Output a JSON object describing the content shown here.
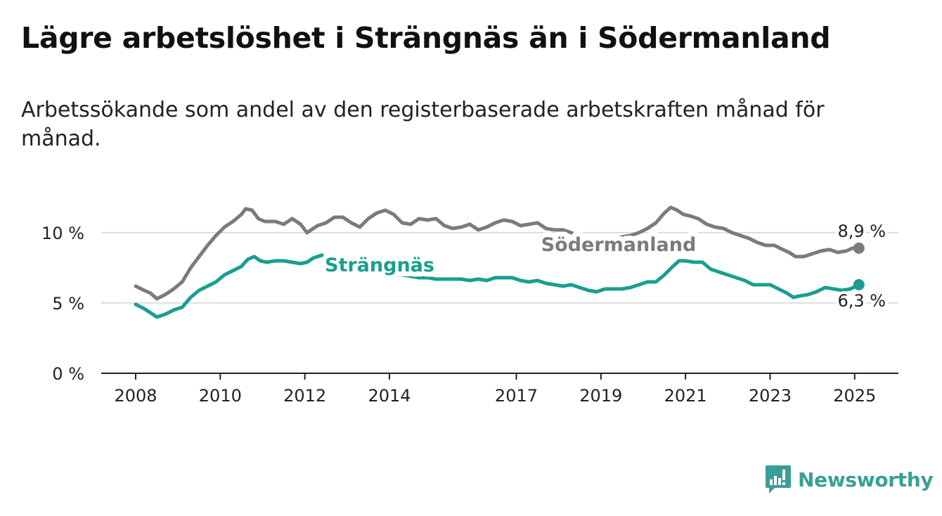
{
  "title": "Lägre arbetslöshet i Strängnäs än i Södermanland",
  "subtitle": "Arbetssökande som andel av den registerbaserade arbetskraften månad för månad.",
  "brand": {
    "name": "Newsworthy",
    "icon": "newsworthy-logo-icon",
    "color": "#3a9e98"
  },
  "chart_data": {
    "type": "line",
    "title": "Lägre arbetslöshet i Strängnäs än i Södermanland",
    "subtitle": "Arbetssökande som andel av den registerbaserade arbetskraften månad för månad.",
    "xlabel": "",
    "ylabel": "",
    "xlim": [
      2008,
      2025.3
    ],
    "ylim": [
      0,
      12
    ],
    "x_ticks": [
      2008,
      2010,
      2012,
      2014,
      2017,
      2019,
      2021,
      2023,
      2025
    ],
    "x_tick_labels": [
      "2008",
      "2010",
      "2012",
      "2014",
      "2017",
      "2019",
      "2021",
      "2023",
      "2025"
    ],
    "y_ticks": [
      0,
      5,
      10
    ],
    "y_tick_labels": [
      "0 %",
      "5 %",
      "10 %"
    ],
    "grid": "horizontal",
    "legend": "direct labels on lines",
    "series": [
      {
        "name": "Södermanland",
        "color": "#7a7a80",
        "end_label": "8,9 %",
        "points": [
          [
            2008.0,
            6.2
          ],
          [
            2008.2,
            5.9
          ],
          [
            2008.35,
            5.7
          ],
          [
            2008.5,
            5.3
          ],
          [
            2008.7,
            5.6
          ],
          [
            2008.9,
            6.0
          ],
          [
            2009.1,
            6.5
          ],
          [
            2009.3,
            7.5
          ],
          [
            2009.5,
            8.3
          ],
          [
            2009.7,
            9.1
          ],
          [
            2009.9,
            9.8
          ],
          [
            2010.1,
            10.4
          ],
          [
            2010.3,
            10.8
          ],
          [
            2010.5,
            11.3
          ],
          [
            2010.6,
            11.7
          ],
          [
            2010.75,
            11.6
          ],
          [
            2010.9,
            11.0
          ],
          [
            2011.05,
            10.8
          ],
          [
            2011.3,
            10.8
          ],
          [
            2011.5,
            10.6
          ],
          [
            2011.7,
            11.0
          ],
          [
            2011.9,
            10.6
          ],
          [
            2012.05,
            10.0
          ],
          [
            2012.3,
            10.5
          ],
          [
            2012.5,
            10.7
          ],
          [
            2012.7,
            11.1
          ],
          [
            2012.9,
            11.1
          ],
          [
            2013.1,
            10.7
          ],
          [
            2013.3,
            10.4
          ],
          [
            2013.5,
            11.0
          ],
          [
            2013.7,
            11.4
          ],
          [
            2013.9,
            11.6
          ],
          [
            2014.1,
            11.3
          ],
          [
            2014.3,
            10.7
          ],
          [
            2014.5,
            10.6
          ],
          [
            2014.7,
            11.0
          ],
          [
            2014.9,
            10.9
          ],
          [
            2015.1,
            11.0
          ],
          [
            2015.3,
            10.5
          ],
          [
            2015.5,
            10.3
          ],
          [
            2015.7,
            10.4
          ],
          [
            2015.9,
            10.6
          ],
          [
            2016.1,
            10.2
          ],
          [
            2016.3,
            10.4
          ],
          [
            2016.5,
            10.7
          ],
          [
            2016.7,
            10.9
          ],
          [
            2016.9,
            10.8
          ],
          [
            2017.1,
            10.5
          ],
          [
            2017.3,
            10.6
          ],
          [
            2017.5,
            10.7
          ],
          [
            2017.7,
            10.3
          ],
          [
            2017.9,
            10.2
          ],
          [
            2018.1,
            10.2
          ],
          [
            2018.3,
            10.0
          ],
          [
            2018.5,
            9.7
          ],
          [
            2018.7,
            9.6
          ],
          [
            2018.9,
            9.6
          ],
          [
            2019.1,
            9.5
          ],
          [
            2019.3,
            9.6
          ],
          [
            2019.5,
            9.7
          ],
          [
            2019.7,
            9.8
          ],
          [
            2019.9,
            10.0
          ],
          [
            2020.1,
            10.3
          ],
          [
            2020.3,
            10.7
          ],
          [
            2020.5,
            11.4
          ],
          [
            2020.65,
            11.8
          ],
          [
            2020.8,
            11.6
          ],
          [
            2020.95,
            11.3
          ],
          [
            2021.1,
            11.2
          ],
          [
            2021.3,
            11.0
          ],
          [
            2021.5,
            10.6
          ],
          [
            2021.7,
            10.4
          ],
          [
            2021.9,
            10.3
          ],
          [
            2022.1,
            10.0
          ],
          [
            2022.3,
            9.8
          ],
          [
            2022.5,
            9.6
          ],
          [
            2022.7,
            9.3
          ],
          [
            2022.9,
            9.1
          ],
          [
            2023.1,
            9.1
          ],
          [
            2023.3,
            8.8
          ],
          [
            2023.45,
            8.6
          ],
          [
            2023.6,
            8.3
          ],
          [
            2023.8,
            8.3
          ],
          [
            2024.0,
            8.5
          ],
          [
            2024.2,
            8.7
          ],
          [
            2024.4,
            8.8
          ],
          [
            2024.6,
            8.6
          ],
          [
            2024.8,
            8.7
          ],
          [
            2024.95,
            8.9
          ],
          [
            2025.1,
            8.9
          ]
        ]
      },
      {
        "name": "Strängnäs",
        "color": "#1a9e8f",
        "end_label": "6,3 %",
        "points": [
          [
            2008.0,
            4.9
          ],
          [
            2008.2,
            4.6
          ],
          [
            2008.35,
            4.3
          ],
          [
            2008.5,
            4.0
          ],
          [
            2008.7,
            4.2
          ],
          [
            2008.9,
            4.5
          ],
          [
            2009.1,
            4.7
          ],
          [
            2009.3,
            5.4
          ],
          [
            2009.5,
            5.9
          ],
          [
            2009.7,
            6.2
          ],
          [
            2009.9,
            6.5
          ],
          [
            2010.1,
            7.0
          ],
          [
            2010.3,
            7.3
          ],
          [
            2010.5,
            7.6
          ],
          [
            2010.65,
            8.1
          ],
          [
            2010.8,
            8.3
          ],
          [
            2010.95,
            8.0
          ],
          [
            2011.1,
            7.9
          ],
          [
            2011.3,
            8.0
          ],
          [
            2011.5,
            8.0
          ],
          [
            2011.7,
            7.9
          ],
          [
            2011.9,
            7.8
          ],
          [
            2012.05,
            7.9
          ],
          [
            2012.2,
            8.2
          ],
          [
            2012.4,
            8.4
          ],
          [
            2012.6,
            8.1
          ],
          [
            2012.75,
            8.0
          ],
          [
            2012.9,
            8.3
          ],
          [
            2013.1,
            8.0
          ],
          [
            2013.3,
            7.3
          ],
          [
            2013.5,
            7.1
          ],
          [
            2013.7,
            7.2
          ],
          [
            2013.9,
            7.1
          ],
          [
            2014.1,
            7.0
          ],
          [
            2014.3,
            7.0
          ],
          [
            2014.5,
            6.9
          ],
          [
            2014.7,
            6.8
          ],
          [
            2014.9,
            6.8
          ],
          [
            2015.1,
            6.7
          ],
          [
            2015.3,
            6.7
          ],
          [
            2015.5,
            6.7
          ],
          [
            2015.7,
            6.7
          ],
          [
            2015.9,
            6.6
          ],
          [
            2016.1,
            6.7
          ],
          [
            2016.3,
            6.6
          ],
          [
            2016.5,
            6.8
          ],
          [
            2016.7,
            6.8
          ],
          [
            2016.9,
            6.8
          ],
          [
            2017.1,
            6.6
          ],
          [
            2017.3,
            6.5
          ],
          [
            2017.5,
            6.6
          ],
          [
            2017.7,
            6.4
          ],
          [
            2017.9,
            6.3
          ],
          [
            2018.1,
            6.2
          ],
          [
            2018.3,
            6.3
          ],
          [
            2018.5,
            6.1
          ],
          [
            2018.7,
            5.9
          ],
          [
            2018.9,
            5.8
          ],
          [
            2019.1,
            6.0
          ],
          [
            2019.3,
            6.0
          ],
          [
            2019.5,
            6.0
          ],
          [
            2019.7,
            6.1
          ],
          [
            2019.9,
            6.3
          ],
          [
            2020.1,
            6.5
          ],
          [
            2020.3,
            6.5
          ],
          [
            2020.5,
            7.0
          ],
          [
            2020.7,
            7.6
          ],
          [
            2020.85,
            8.0
          ],
          [
            2021.0,
            8.0
          ],
          [
            2021.2,
            7.9
          ],
          [
            2021.4,
            7.9
          ],
          [
            2021.6,
            7.4
          ],
          [
            2021.8,
            7.2
          ],
          [
            2022.0,
            7.0
          ],
          [
            2022.2,
            6.8
          ],
          [
            2022.4,
            6.6
          ],
          [
            2022.6,
            6.3
          ],
          [
            2022.8,
            6.3
          ],
          [
            2023.0,
            6.3
          ],
          [
            2023.2,
            6.0
          ],
          [
            2023.4,
            5.7
          ],
          [
            2023.55,
            5.4
          ],
          [
            2023.7,
            5.5
          ],
          [
            2023.9,
            5.6
          ],
          [
            2024.1,
            5.8
          ],
          [
            2024.3,
            6.1
          ],
          [
            2024.5,
            6.0
          ],
          [
            2024.7,
            5.9
          ],
          [
            2024.9,
            6.0
          ],
          [
            2025.1,
            6.3
          ]
        ]
      }
    ]
  }
}
